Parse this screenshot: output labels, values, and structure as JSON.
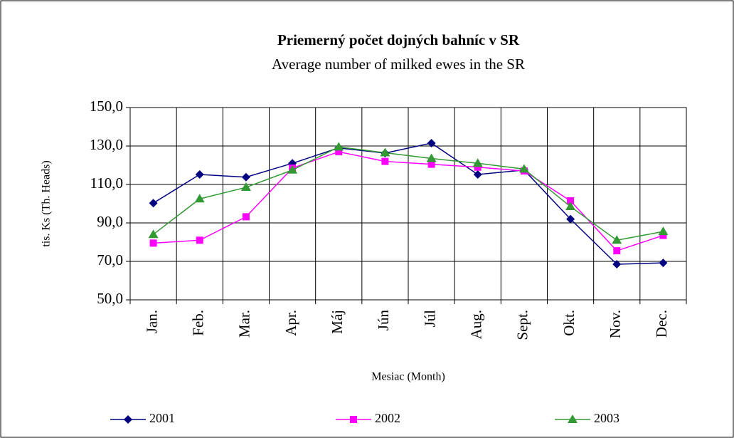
{
  "chart_data": {
    "type": "line",
    "title": "Priemerný počet dojných bahníc v SR",
    "subtitle": "Average number of milked ewes in the SR",
    "y_label": "tis. Ks (Th. Heads)",
    "x_label": "Mesiac (Month)",
    "categories": [
      "Jan.",
      "Feb.",
      "Mar.",
      "Apr.",
      "Máj",
      "Jún",
      "Júl",
      "Aug.",
      "Sept.",
      "Okt.",
      "Nov.",
      "Dec."
    ],
    "series": [
      {
        "name": "2001",
        "color": "#000080",
        "marker": "diamond",
        "values": [
          100.3,
          115.2,
          113.8,
          121,
          129,
          126.3,
          131.5,
          115.2,
          117.5,
          92,
          68.5,
          69.2
        ]
      },
      {
        "name": "2002",
        "color": "#ff00ff",
        "marker": "square",
        "values": [
          79.5,
          81,
          93.2,
          118.5,
          127,
          122,
          120.5,
          119,
          117,
          101.5,
          75.5,
          83.5
        ]
      },
      {
        "name": "2003",
        "color": "#339933",
        "marker": "triangle",
        "values": [
          84,
          102.5,
          108.5,
          117.5,
          129.5,
          126.5,
          123.5,
          121,
          118,
          98.5,
          81,
          85.5
        ]
      }
    ],
    "ylim": [
      50,
      150
    ],
    "yticks": [
      {
        "value": 50,
        "label": "50,0"
      },
      {
        "value": 70,
        "label": "70,0"
      },
      {
        "value": 90,
        "label": "90,0"
      },
      {
        "value": 110,
        "label": "110,0"
      },
      {
        "value": 130,
        "label": "130,0"
      },
      {
        "value": 150,
        "label": "150,0"
      }
    ],
    "grid": true,
    "legend": "bottom"
  }
}
